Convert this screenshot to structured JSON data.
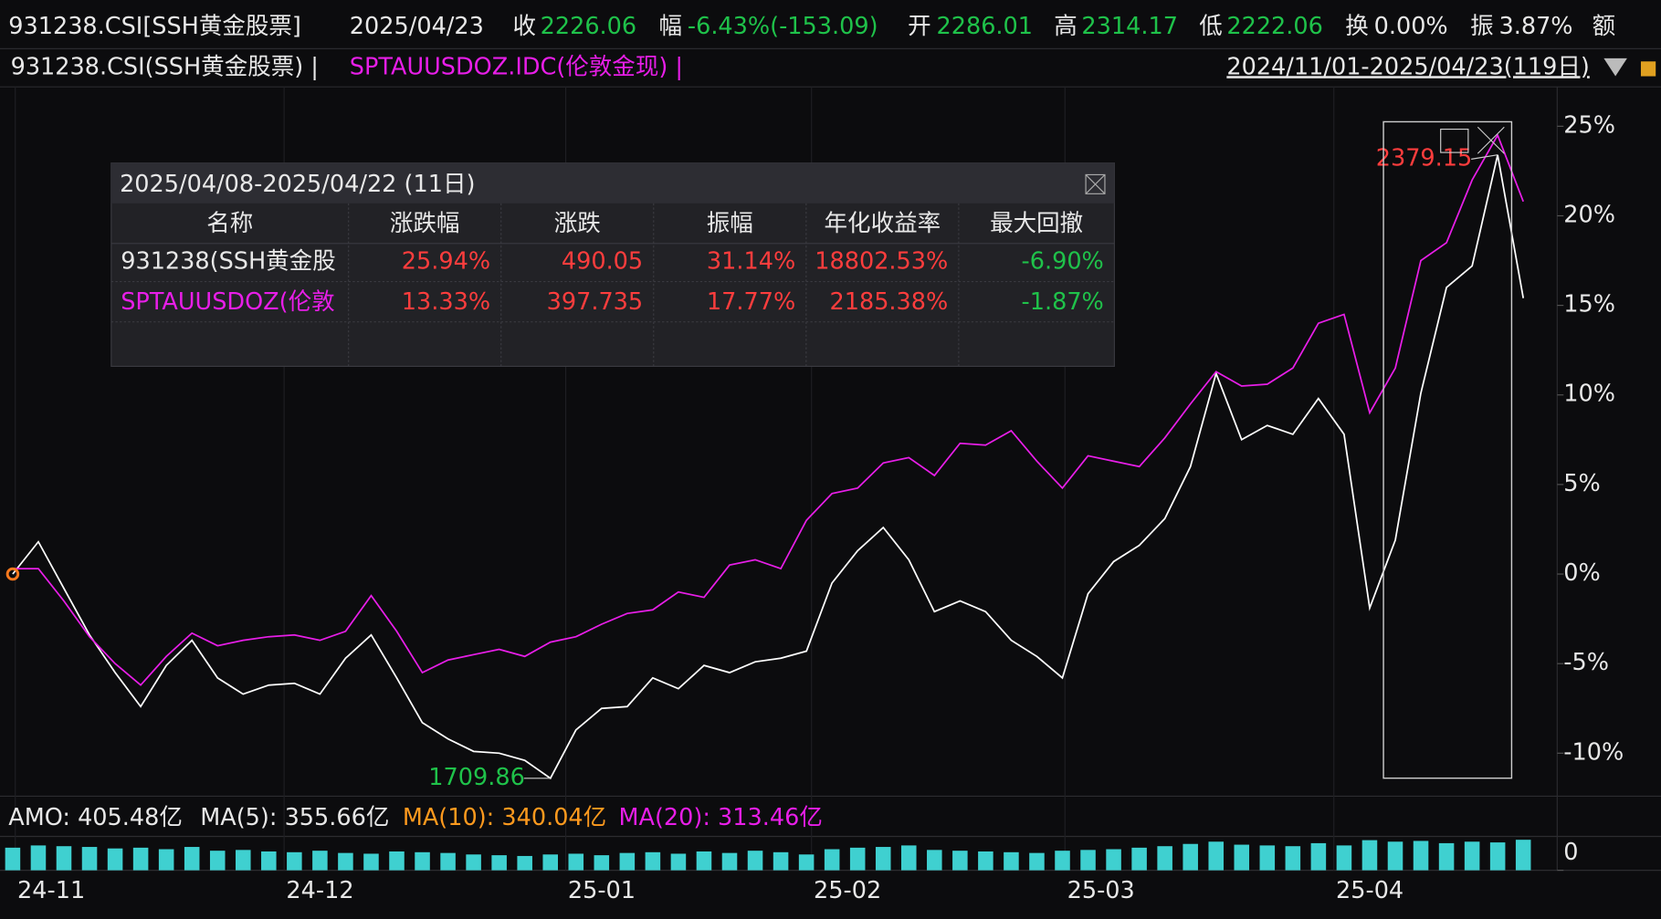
{
  "quote": {
    "code": "931238.CSI[SSH黄金股票]",
    "date": "2025/04/23",
    "close_label": "收",
    "close": "2226.06",
    "change_label": "幅",
    "change": "-6.43%(-153.09)",
    "open_label": "开",
    "open": "2286.01",
    "high_label": "高",
    "high": "2314.17",
    "low_label": "低",
    "low": "2222.06",
    "turnover_label": "换",
    "turnover": "0.00%",
    "amplitude_label": "振",
    "amplitude": "3.87%",
    "amount_label": "额"
  },
  "compare": {
    "main": "931238.CSI(SSH黄金股票) |",
    "other": "SPTAUUSDOZ.IDC(伦敦金现) |",
    "range": "2024/11/01-2025/04/23(119日)"
  },
  "stats": {
    "title": "2025/04/08-2025/04/22 (11日)",
    "headers": [
      "名称",
      "涨跌幅",
      "涨跌",
      "振幅",
      "年化收益率",
      "最大回撤"
    ],
    "rows": [
      [
        "931238(SSH黄金股",
        "25.94%",
        "490.05",
        "31.14%",
        "18802.53%",
        "-6.90%"
      ],
      [
        "SPTAUUSDOZ(伦敦",
        "13.33%",
        "397.735",
        "17.77%",
        "2185.38%",
        "-1.87%"
      ]
    ]
  },
  "chart_data": {
    "type": "line",
    "xlim": [
      0,
      59
    ],
    "xticks": [
      {
        "value": 0.1,
        "label": "24-11"
      },
      {
        "value": 10.6,
        "label": "24-12"
      },
      {
        "value": 21.6,
        "label": "25-01"
      },
      {
        "value": 31.2,
        "label": "25-02"
      },
      {
        "value": 41.1,
        "label": "25-03"
      },
      {
        "value": 51.6,
        "label": "25-04"
      }
    ],
    "ylim": [
      -12.4,
      27.2
    ],
    "yticks": [
      {
        "value": 25,
        "label": "25%"
      },
      {
        "value": 20,
        "label": "20%"
      },
      {
        "value": 15,
        "label": "15%"
      },
      {
        "value": 10,
        "label": "10%"
      },
      {
        "value": 5,
        "label": "5%"
      },
      {
        "value": 0,
        "label": "0%"
      },
      {
        "value": -5,
        "label": "-5%"
      },
      {
        "value": -10,
        "label": "-10%"
      }
    ],
    "series": [
      {
        "name": "931238.CSI(SSH黄金股票)",
        "color": "#ffffff",
        "values": [
          0,
          1.8,
          -0.8,
          -3.4,
          -5.5,
          -7.4,
          -5.1,
          -3.7,
          -5.8,
          -6.7,
          -6.2,
          -6.1,
          -6.7,
          -4.7,
          -3.4,
          -5.8,
          -8.3,
          -9.2,
          -9.9,
          -10,
          -10.4,
          -11.4,
          -8.7,
          -7.5,
          -7.4,
          -5.8,
          -6.4,
          -5.1,
          -5.5,
          -4.9,
          -4.7,
          -4.3,
          -0.5,
          1.3,
          2.6,
          0.8,
          -2.1,
          -1.5,
          -2.1,
          -3.7,
          -4.6,
          -5.8,
          -1.1,
          0.7,
          1.6,
          3.1,
          6,
          11.2,
          7.5,
          8.3,
          7.8,
          9.8,
          7.8,
          -1.9,
          1.9,
          10.1,
          16,
          17.2,
          23.4,
          15.4
        ]
      },
      {
        "name": "SPTAUUSDOZ.IDC(伦敦金现)",
        "color": "#e81ee8",
        "values": [
          0.3,
          0.3,
          -1.5,
          -3.5,
          -5,
          -6.2,
          -4.6,
          -3.3,
          -4,
          -3.7,
          -3.5,
          -3.4,
          -3.7,
          -3.2,
          -1.2,
          -3.2,
          -5.5,
          -4.8,
          -4.5,
          -4.2,
          -4.6,
          -3.8,
          -3.5,
          -2.8,
          -2.2,
          -2,
          -1,
          -1.3,
          0.5,
          0.8,
          0.3,
          3,
          4.5,
          4.8,
          6.2,
          6.5,
          5.5,
          7.3,
          7.2,
          8,
          6.3,
          4.8,
          6.6,
          6.3,
          6,
          7.6,
          9.5,
          11.3,
          10.5,
          10.6,
          11.5,
          14,
          14.5,
          9,
          11.5,
          17.5,
          18.5,
          22,
          24.5,
          20.8
        ]
      }
    ],
    "annotations": [
      {
        "text": "2379.15",
        "index": 58
      },
      {
        "text": "1709.86",
        "index": 21
      }
    ],
    "volume": {
      "labels": [
        "AMO: 405.48亿",
        "MA(5): 355.66亿",
        "MA(10): 340.04亿",
        "MA(20): 313.46亿"
      ],
      "ylim": [
        0,
        450
      ],
      "yticks": [
        0
      ],
      "color": "#3fd0d0",
      "values": [
        300,
        330,
        320,
        310,
        290,
        300,
        280,
        310,
        260,
        270,
        250,
        240,
        260,
        230,
        220,
        250,
        240,
        230,
        210,
        200,
        190,
        210,
        220,
        200,
        230,
        240,
        220,
        250,
        230,
        260,
        240,
        210,
        280,
        300,
        310,
        330,
        270,
        260,
        250,
        240,
        230,
        260,
        270,
        280,
        300,
        320,
        350,
        380,
        340,
        330,
        320,
        360,
        330,
        400,
        380,
        390,
        360,
        380,
        370,
        405.48
      ]
    }
  }
}
